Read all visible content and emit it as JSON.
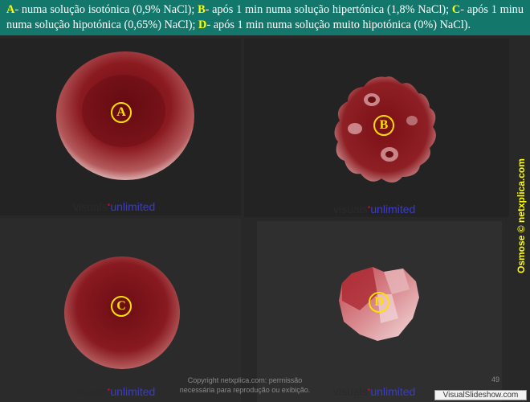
{
  "caption": {
    "a_letter": "A",
    "a_text": "- numa solução isotónica (0,9% NaCl); ",
    "b_letter": "B",
    "b_text": "- após 1 min numa solução hipertónica (1,8% NaCl); ",
    "c_letter": "C",
    "c_text": "- após 1 minu numa solução hipotónica (0,65%) NaCl); ",
    "d_letter": "D",
    "d_text": "- após 1 min numa solução muito hipotónica (0%) NaCl)."
  },
  "cells": {
    "a_label": "A",
    "b_label": "B",
    "c_label": "C",
    "d_label": "D"
  },
  "watermark": {
    "part1": "visuals",
    "dot": "•",
    "part2": "unlimited"
  },
  "side_text": "Osmose © netxplica.com",
  "copyright": {
    "line1": "Copyright netxplica.com: permissão",
    "line2": "necessária para reprodução ou exibição."
  },
  "page_number": "49",
  "brand": "VisualSlideshow.com",
  "colors": {
    "caption_bg": "#14776b",
    "label_yellow": "#ffe000",
    "cell_red": "#7a0f15",
    "background": "#282828"
  }
}
